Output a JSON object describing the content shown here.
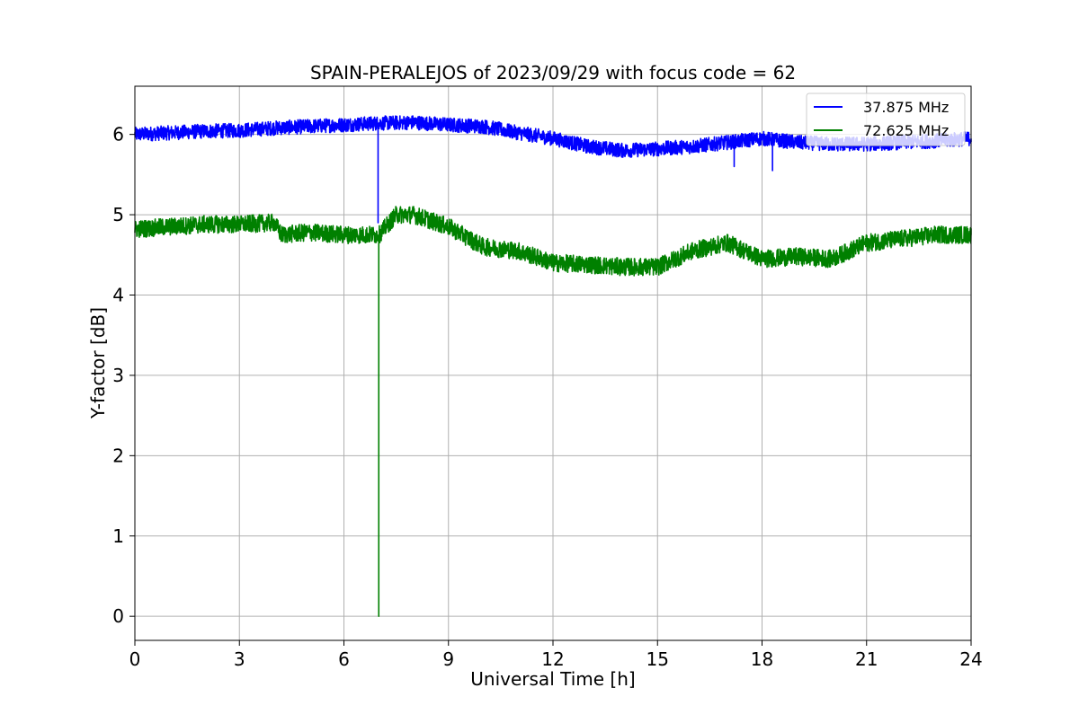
{
  "chart_data": {
    "type": "line",
    "title": "SPAIN-PERALEJOS of 2023/09/29 with focus code = 62",
    "xlabel": "Universal Time [h]",
    "ylabel": "Y-factor [dB]",
    "xlim": [
      0,
      24
    ],
    "ylim": [
      -0.3,
      6.6
    ],
    "xticks": [
      0,
      3,
      6,
      9,
      12,
      15,
      18,
      21,
      24
    ],
    "yticks": [
      0,
      1,
      2,
      3,
      4,
      5,
      6
    ],
    "grid": true,
    "legend_position": "top-right",
    "series": [
      {
        "name": "37.875 MHz",
        "color": "#0000ff",
        "noise": 0.09,
        "x": [
          0,
          1,
          2,
          3,
          4,
          5,
          6,
          7,
          8,
          9,
          10,
          11,
          12,
          13,
          14,
          15,
          16,
          17,
          18,
          19,
          20,
          21,
          22,
          23,
          24
        ],
        "y": [
          6.0,
          6.02,
          6.04,
          6.05,
          6.08,
          6.1,
          6.12,
          6.14,
          6.15,
          6.12,
          6.1,
          6.02,
          5.95,
          5.85,
          5.8,
          5.82,
          5.85,
          5.9,
          5.95,
          5.9,
          5.88,
          5.88,
          5.9,
          5.92,
          5.95
        ],
        "spikes": [
          {
            "x": 6.98,
            "y": 4.9
          },
          {
            "x": 17.2,
            "y": 5.6
          },
          {
            "x": 18.3,
            "y": 5.55
          }
        ]
      },
      {
        "name": "72.625 MHz",
        "color": "#008000",
        "noise": 0.11,
        "x": [
          0,
          1,
          2,
          3,
          4,
          4.2,
          5,
          6,
          7,
          7.5,
          8,
          9,
          10,
          11,
          12,
          13,
          14,
          15,
          16,
          17,
          18,
          19,
          20,
          21,
          22,
          23,
          24
        ],
        "y": [
          4.82,
          4.85,
          4.88,
          4.88,
          4.9,
          4.75,
          4.78,
          4.75,
          4.75,
          5.0,
          5.0,
          4.85,
          4.6,
          4.55,
          4.4,
          4.38,
          4.35,
          4.35,
          4.55,
          4.65,
          4.45,
          4.48,
          4.45,
          4.65,
          4.7,
          4.75,
          4.75
        ],
        "spikes": [
          {
            "x": 7.0,
            "y": 0.0
          }
        ]
      }
    ]
  }
}
